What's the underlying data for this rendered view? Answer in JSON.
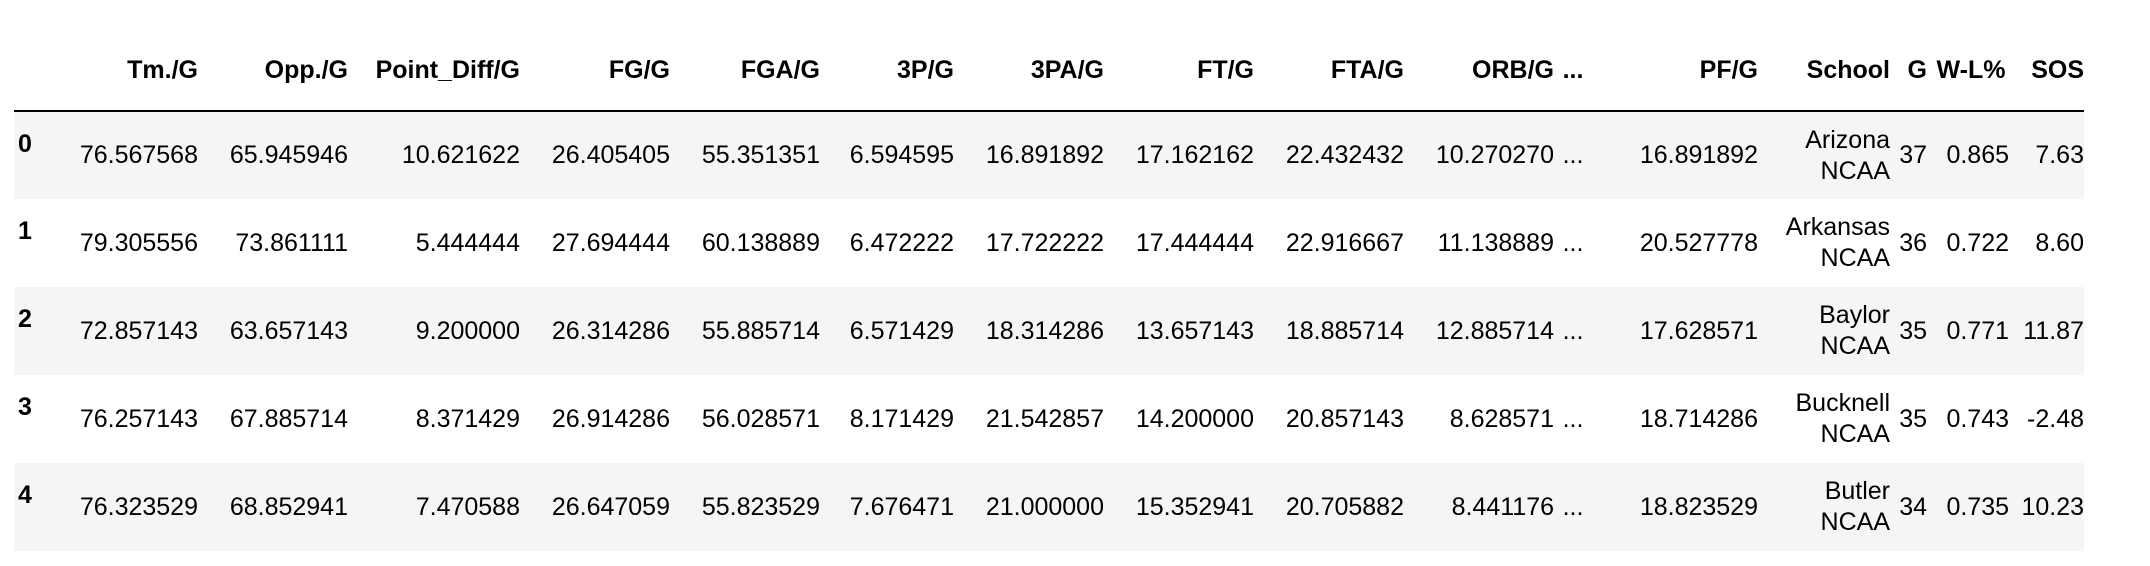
{
  "table": {
    "columns": [
      "",
      "Tm./G",
      "Opp./G",
      "Point_Diff/G",
      "FG/G",
      "FGA/G",
      "3P/G",
      "3PA/G",
      "FT/G",
      "FTA/G",
      "ORB/G",
      "...",
      "PF/G",
      "School",
      "G",
      "W-L%",
      "SOS"
    ],
    "rows": [
      {
        "index": "0",
        "cells": [
          "76.567568",
          "65.945946",
          "10.621622",
          "26.405405",
          "55.351351",
          "6.594595",
          "16.891892",
          "17.162162",
          "22.432432",
          "10.270270",
          "...",
          "16.891892"
        ],
        "school": [
          "Arizona",
          "NCAA"
        ],
        "tail": [
          "37",
          "0.865",
          "7.63"
        ]
      },
      {
        "index": "1",
        "cells": [
          "79.305556",
          "73.861111",
          "5.444444",
          "27.694444",
          "60.138889",
          "6.472222",
          "17.722222",
          "17.444444",
          "22.916667",
          "11.138889",
          "...",
          "20.527778"
        ],
        "school": [
          "Arkansas",
          "NCAA"
        ],
        "tail": [
          "36",
          "0.722",
          "8.60"
        ]
      },
      {
        "index": "2",
        "cells": [
          "72.857143",
          "63.657143",
          "9.200000",
          "26.314286",
          "55.885714",
          "6.571429",
          "18.314286",
          "13.657143",
          "18.885714",
          "12.885714",
          "...",
          "17.628571"
        ],
        "school": [
          "Baylor",
          "NCAA"
        ],
        "tail": [
          "35",
          "0.771",
          "11.87"
        ]
      },
      {
        "index": "3",
        "cells": [
          "76.257143",
          "67.885714",
          "8.371429",
          "26.914286",
          "56.028571",
          "8.171429",
          "21.542857",
          "14.200000",
          "20.857143",
          "8.628571",
          "...",
          "18.714286"
        ],
        "school": [
          "Bucknell",
          "NCAA"
        ],
        "tail": [
          "35",
          "0.743",
          "-2.48"
        ]
      },
      {
        "index": "4",
        "cells": [
          "76.323529",
          "68.852941",
          "7.470588",
          "26.647059",
          "55.823529",
          "7.676471",
          "21.000000",
          "15.352941",
          "20.705882",
          "8.441176",
          "...",
          "18.823529"
        ],
        "school": [
          "Butler",
          "NCAA"
        ],
        "tail": [
          "34",
          "0.735",
          "10.23"
        ]
      }
    ]
  }
}
